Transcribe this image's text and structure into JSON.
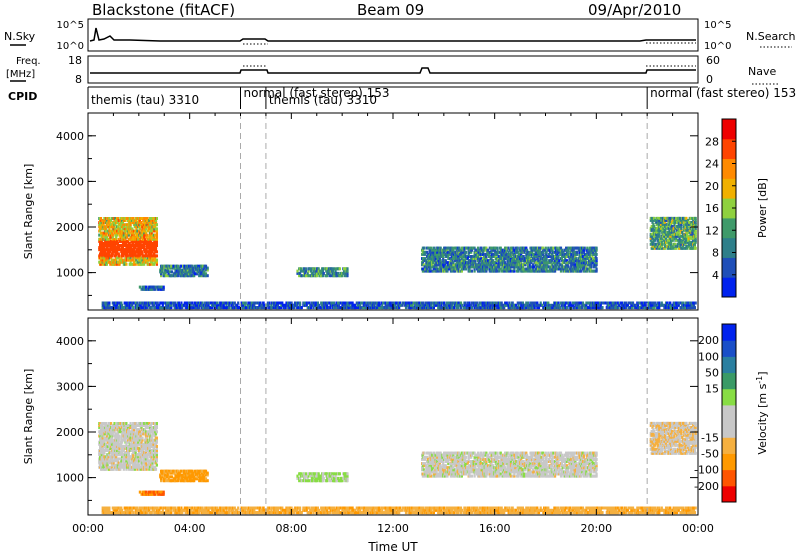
{
  "header": {
    "station": "Blackstone (fitACF)",
    "beam": "Beam 09",
    "date": "09/Apr/2010"
  },
  "top_panels": {
    "nsky_label": "N.Sky",
    "nsearch_label": "N.Search",
    "nsky_ticks": [
      "10^5",
      "10^0"
    ],
    "nsearch_ticks": [
      "10^5",
      "10^0"
    ],
    "freq_label_1": "Freq.",
    "freq_label_2": "[MHz]",
    "freq_ticks": [
      "18",
      "8"
    ],
    "nave_label": "Nave",
    "nave_ticks": [
      "60",
      "0"
    ],
    "cpid_label": "CPID"
  },
  "cpid_segments": [
    {
      "label": "themis (tau) 3310",
      "start": 0.0,
      "end": 6.0
    },
    {
      "label": "normal (fast stereo) 153",
      "start": 6.0,
      "end": 7.0
    },
    {
      "label": "themis (tau) 3310",
      "start": 7.0,
      "end": 22.0
    },
    {
      "label": "normal (fast stereo) 153",
      "start": 22.0,
      "end": 24.0
    }
  ],
  "colors": {
    "power": [
      "#0022ee",
      "#1f4fb8",
      "#2e7f8a",
      "#3f9a6a",
      "#8fd13f",
      "#f0b000",
      "#ff8a00",
      "#ff4400",
      "#ee0000"
    ],
    "velocity": [
      "#ee0000",
      "#ff5500",
      "#ff9900",
      "#f5b040",
      "#c8c8c8",
      "#c8c8c8",
      "#88dd44",
      "#3a9a66",
      "#2a7fa0",
      "#1a4fc8",
      "#0022ee"
    ]
  },
  "chart_data": [
    {
      "type": "heatmap",
      "parameter": "power",
      "ylabel": "Slant Range [km]",
      "xlim": [
        0,
        24
      ],
      "ylim": [
        180,
        4500
      ],
      "yticks": [
        "1000",
        "2000",
        "3000",
        "4000"
      ],
      "colorbar_label": "Power [dB]",
      "colorbar_range": [
        0,
        32
      ],
      "colorbar_ticks": [
        "4",
        "8",
        "12",
        "16",
        "20",
        "24",
        "28"
      ],
      "regions": [
        {
          "x": [
            0.4,
            2.7
          ],
          "y": [
            1150,
            2200
          ],
          "value": 22
        },
        {
          "x": [
            2.8,
            4.7
          ],
          "y": [
            900,
            1150
          ],
          "value": 10
        },
        {
          "x": [
            2.0,
            3.0
          ],
          "y": [
            600,
            700
          ],
          "value": 8
        },
        {
          "x": [
            8.2,
            10.2
          ],
          "y": [
            900,
            1100
          ],
          "value": 12
        },
        {
          "x": [
            13.1,
            20.0
          ],
          "y": [
            1000,
            1550
          ],
          "value": 10
        },
        {
          "x": [
            22.1,
            23.9
          ],
          "y": [
            1500,
            2200
          ],
          "value": 14
        },
        {
          "x": [
            0.5,
            23.9
          ],
          "y": [
            200,
            350
          ],
          "value": 6
        }
      ],
      "dashed_lines_x": [
        6.0,
        7.0,
        22.0
      ]
    },
    {
      "type": "heatmap",
      "parameter": "velocity",
      "ylabel": "Slant Range [km]",
      "xlabel": "Time UT",
      "xlim": [
        0,
        24
      ],
      "ylim": [
        180,
        4500
      ],
      "yticks": [
        "1000",
        "2000",
        "3000",
        "4000"
      ],
      "xticks": [
        "00:00",
        "04:00",
        "08:00",
        "12:00",
        "16:00",
        "20:00",
        "00:00"
      ],
      "colorbar_label": "Velocity [m s",
      "colorbar_sup": "-1",
      "colorbar_suffix": "]",
      "colorbar_ticks": [
        "-200",
        "-100",
        "-50",
        "-15",
        "15",
        "50",
        "100",
        "200"
      ],
      "regions": [
        {
          "x": [
            0.4,
            2.7
          ],
          "y": [
            1150,
            2200
          ],
          "value": 0
        },
        {
          "x": [
            2.8,
            4.7
          ],
          "y": [
            900,
            1150
          ],
          "value": -60
        },
        {
          "x": [
            2.0,
            3.0
          ],
          "y": [
            600,
            700
          ],
          "value": -100
        },
        {
          "x": [
            8.2,
            10.2
          ],
          "y": [
            900,
            1100
          ],
          "value": 20
        },
        {
          "x": [
            13.1,
            20.0
          ],
          "y": [
            1000,
            1550
          ],
          "value": 0
        },
        {
          "x": [
            22.1,
            23.9
          ],
          "y": [
            1500,
            2200
          ],
          "value": -10
        },
        {
          "x": [
            0.5,
            23.9
          ],
          "y": [
            200,
            350
          ],
          "value": -40
        }
      ],
      "dashed_lines_x": [
        6.0,
        7.0,
        22.0
      ]
    }
  ]
}
